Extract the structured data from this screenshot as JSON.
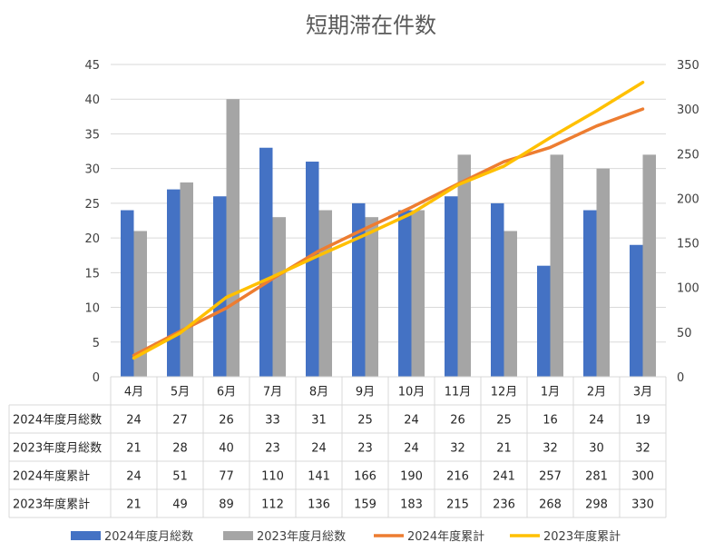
{
  "chart_data": {
    "type": "bar+line",
    "title": "短期滞在件数",
    "categories": [
      "4月",
      "5月",
      "6月",
      "7月",
      "8月",
      "9月",
      "10月",
      "11月",
      "12月",
      "1月",
      "2月",
      "3月"
    ],
    "series": [
      {
        "name": "2024年度月総数",
        "kind": "bar",
        "axis": "left",
        "color": "#4472C4",
        "values": [
          24,
          27,
          26,
          33,
          31,
          25,
          24,
          26,
          25,
          16,
          24,
          19
        ]
      },
      {
        "name": "2023年度月総数",
        "kind": "bar",
        "axis": "left",
        "color": "#A5A5A5",
        "values": [
          21,
          28,
          40,
          23,
          24,
          23,
          24,
          32,
          21,
          32,
          30,
          32
        ]
      },
      {
        "name": "2024年度累計",
        "kind": "line",
        "axis": "right",
        "color": "#ED7D31",
        "values": [
          24,
          51,
          77,
          110,
          141,
          166,
          190,
          216,
          241,
          257,
          281,
          300
        ]
      },
      {
        "name": "2023年度累計",
        "kind": "line",
        "axis": "right",
        "color": "#FFC000",
        "values": [
          21,
          49,
          89,
          112,
          136,
          159,
          183,
          215,
          236,
          268,
          298,
          330
        ]
      }
    ],
    "y_left": {
      "min": 0,
      "max": 45,
      "step": 5,
      "ticks": [
        "0",
        "5",
        "10",
        "15",
        "20",
        "25",
        "30",
        "35",
        "40",
        "45"
      ]
    },
    "y_right": {
      "min": 0,
      "max": 350,
      "step": 50,
      "ticks": [
        "0",
        "50",
        "100",
        "150",
        "200",
        "250",
        "300",
        "350"
      ]
    },
    "grid": true,
    "legend": "bottom",
    "data_table": true
  }
}
